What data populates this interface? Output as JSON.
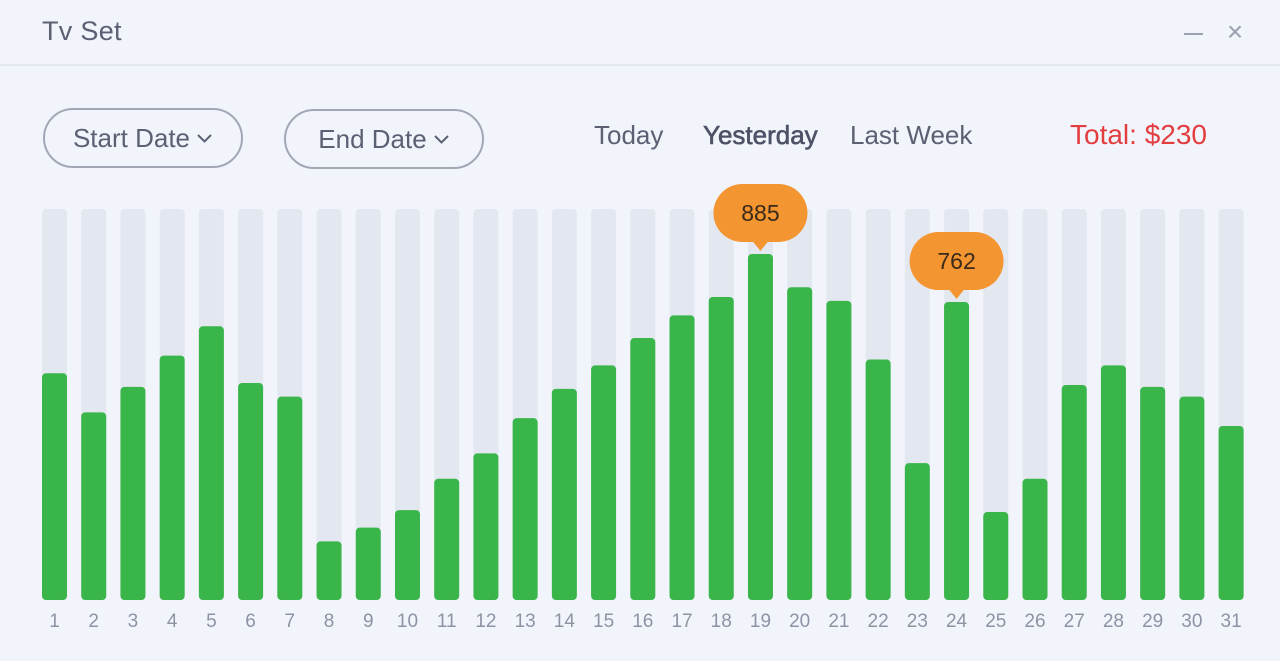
{
  "window": {
    "title": "Tv Set",
    "minimize_icon": "minimize-icon",
    "close_icon": "close-icon",
    "close_glyph": "×"
  },
  "filters": {
    "start_date_label": "Start Date",
    "end_date_label": "End Date",
    "ranges": [
      "Today",
      "Yesterday",
      "Last Week"
    ],
    "active_range": "Yesterday",
    "total_label": "Total: $230"
  },
  "colors": {
    "bar": "#39b54a",
    "track": "#e3e7f0",
    "tooltip": "#f39530",
    "total": "#e23d3f",
    "text": "#5b6073"
  },
  "chart_data": {
    "type": "bar",
    "categories": [
      "1",
      "2",
      "3",
      "4",
      "5",
      "6",
      "7",
      "8",
      "9",
      "10",
      "11",
      "12",
      "13",
      "14",
      "15",
      "16",
      "17",
      "18",
      "19",
      "20",
      "21",
      "22",
      "23",
      "24",
      "25",
      "26",
      "27",
      "28",
      "29",
      "30",
      "31"
    ],
    "values": [
      580,
      480,
      545,
      625,
      700,
      555,
      520,
      150,
      185,
      230,
      310,
      375,
      465,
      540,
      600,
      670,
      728,
      775,
      885,
      800,
      765,
      615,
      350,
      762,
      225,
      310,
      550,
      600,
      545,
      520,
      445
    ],
    "ylim": [
      0,
      1000
    ],
    "tooltips": [
      {
        "category": "19",
        "label": "885"
      },
      {
        "category": "24",
        "label": "762"
      }
    ],
    "grid": false
  }
}
